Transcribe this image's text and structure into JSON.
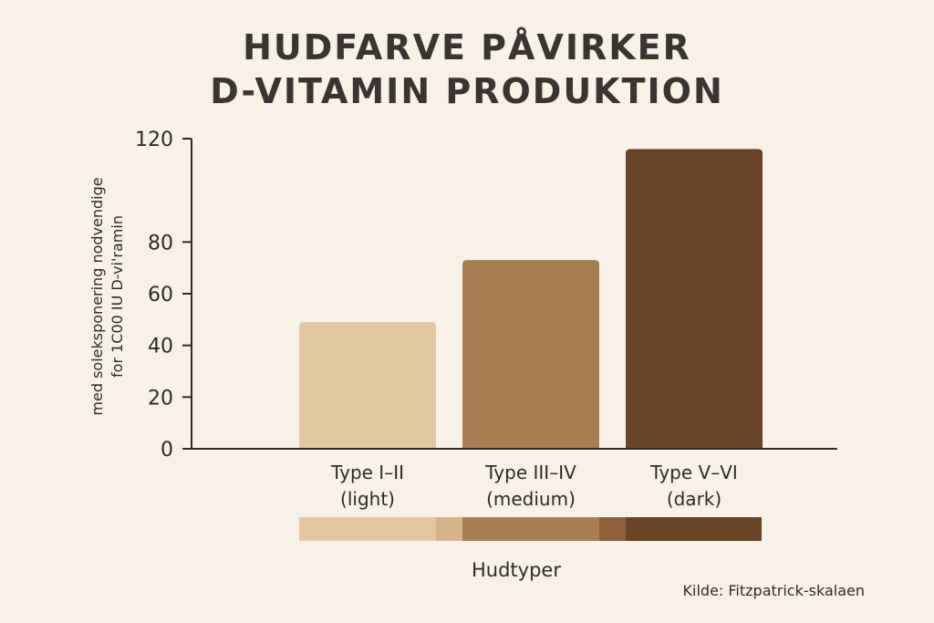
{
  "chart_data": {
    "type": "bar",
    "title": [
      "HUDFARVE PÅVIRKER",
      "D-VITAMIN PRODUKTION"
    ],
    "ylabel": [
      "med soleksponering nodvendige",
      "for 1C00 IU D-vi'ramin"
    ],
    "xlabel": "Hudtyper",
    "ylim": [
      0,
      120
    ],
    "yticks": [
      0,
      20,
      40,
      60,
      80,
      120
    ],
    "categories": [
      [
        "Type I–II",
        "(light)"
      ],
      [
        "Type III–IV",
        "(medium)"
      ],
      [
        "Type V–VI",
        "(dark)"
      ]
    ],
    "values": [
      49,
      73,
      116
    ],
    "colors": [
      "#e3c7a0",
      "#a87f52",
      "#6a4427"
    ],
    "swatch_colors": [
      "#e3c7a0",
      "#d6b38a",
      "#a87f52",
      "#8e6039",
      "#6a4427"
    ],
    "grid": false,
    "legend": "none"
  },
  "source": "Kilde: Fitzpatrick-skalaen"
}
